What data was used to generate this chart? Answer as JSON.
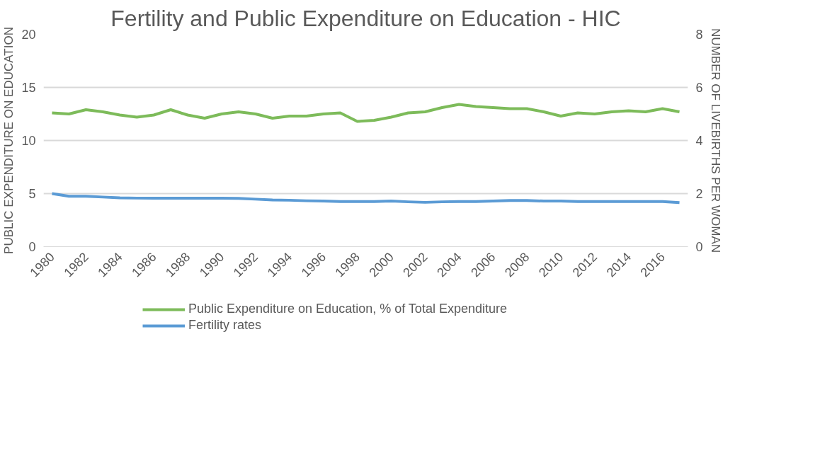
{
  "chart_data": {
    "type": "line",
    "title": "Fertility and Public Expenditure on Education - HIC",
    "ylabel": "PUBLIC EXPENDITURE ON EDUCATION",
    "y2label": "NUMBER OF LIVEBIRTHS PER WOMAN",
    "categories": [
      "1980",
      null,
      "1982",
      null,
      "1984",
      null,
      "1986",
      null,
      "1988",
      null,
      "1990",
      null,
      "1992",
      null,
      "1994",
      null,
      "1996",
      null,
      "1998",
      null,
      "2000",
      null,
      "2002",
      null,
      "2004",
      null,
      "2006",
      null,
      "2008",
      null,
      "2010",
      null,
      "2012",
      null,
      "2014",
      null,
      "2016",
      null
    ],
    "ylim": [
      0,
      20
    ],
    "yticks": [
      0,
      5,
      10,
      15,
      20
    ],
    "y2lim": [
      0,
      8
    ],
    "y2ticks": [
      0,
      2,
      4,
      6,
      8
    ],
    "grid": "y",
    "legend": "bottom",
    "marker": "none",
    "line_style": "solid",
    "series": [
      {
        "name": "Public Expenditure on Education, % of Total Expenditure",
        "color": "#7dbb5a",
        "values": [
          12.6,
          12.5,
          12.9,
          12.7,
          12.4,
          12.2,
          12.4,
          12.9,
          12.4,
          12.1,
          12.5,
          12.7,
          12.5,
          12.1,
          12.3,
          12.3,
          12.5,
          12.6,
          11.8,
          11.9,
          12.2,
          12.6,
          12.7,
          13.1,
          13.4,
          13.2,
          13.1,
          13.0,
          13.0,
          12.7,
          12.3,
          12.6,
          12.5,
          12.7,
          12.8,
          12.7,
          13.0,
          12.7
        ]
      },
      {
        "name": "Fertility rates",
        "color": "#5b9bd5",
        "axis": "y2",
        "values": [
          2.0,
          1.9,
          1.9,
          1.87,
          1.84,
          1.83,
          1.83,
          1.83,
          1.83,
          1.83,
          1.83,
          1.82,
          1.79,
          1.76,
          1.75,
          1.73,
          1.72,
          1.7,
          1.7,
          1.7,
          1.72,
          1.69,
          1.67,
          1.69,
          1.7,
          1.7,
          1.72,
          1.74,
          1.74,
          1.72,
          1.72,
          1.7,
          1.7,
          1.7,
          1.7,
          1.7,
          1.7,
          1.66
        ]
      }
    ]
  }
}
